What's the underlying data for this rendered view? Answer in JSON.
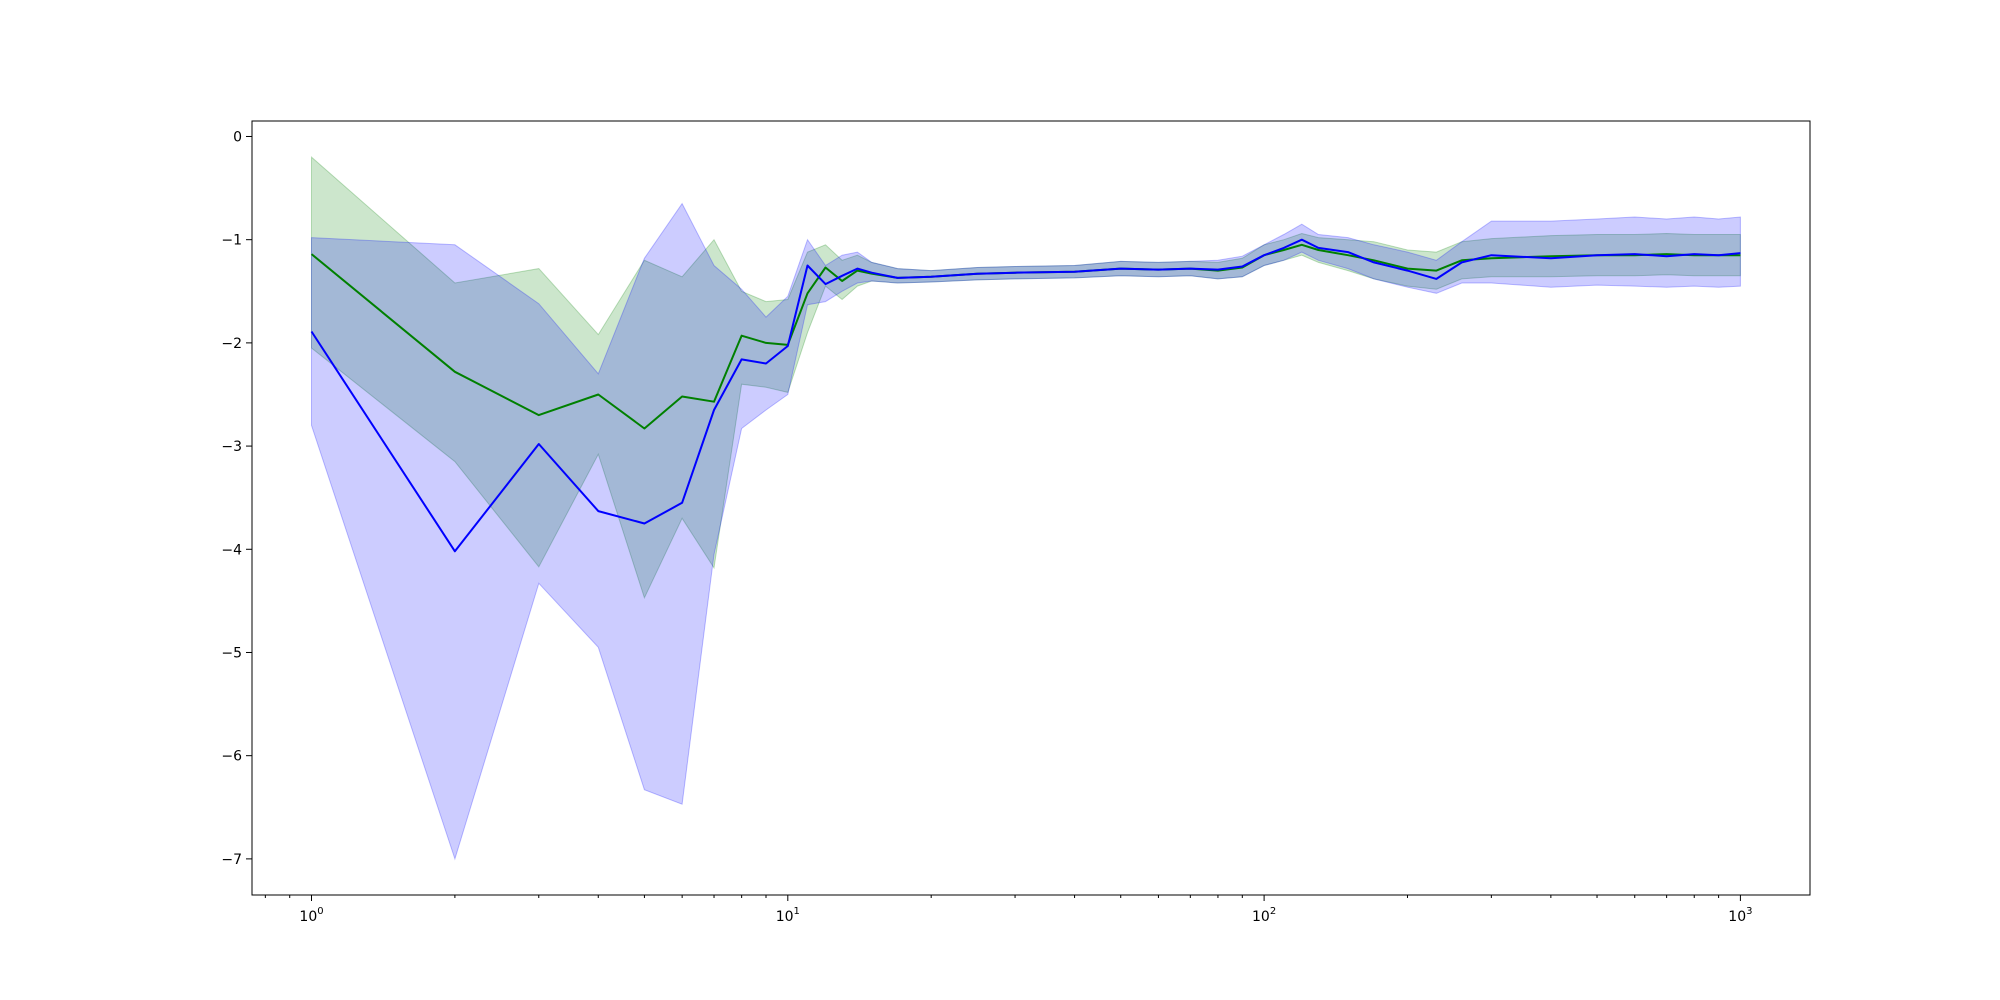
{
  "chart_data": {
    "type": "line",
    "title": "",
    "xlabel": "",
    "ylabel": "",
    "xscale": "log",
    "xlim": [
      0.75,
      1400
    ],
    "ylim": [
      -7.35,
      0.15
    ],
    "grid": false,
    "legend": "none",
    "x_ticks": [
      {
        "value": 1,
        "base": "10",
        "exp": "0"
      },
      {
        "value": 10,
        "base": "10",
        "exp": "1"
      },
      {
        "value": 100,
        "base": "10",
        "exp": "2"
      },
      {
        "value": 1000,
        "base": "10",
        "exp": "3"
      }
    ],
    "y_ticks": [
      {
        "value": 0,
        "label": "0"
      },
      {
        "value": -1,
        "label": "−1"
      },
      {
        "value": -2,
        "label": "−2"
      },
      {
        "value": -3,
        "label": "−3"
      },
      {
        "value": -4,
        "label": "−4"
      },
      {
        "value": -5,
        "label": "−5"
      },
      {
        "value": -6,
        "label": "−6"
      },
      {
        "value": -7,
        "label": "−7"
      }
    ],
    "series": [
      {
        "color": "#008000",
        "band_color": "#008000",
        "band_opacity": 0.2,
        "x": [
          1,
          2,
          3,
          4,
          5,
          6,
          7,
          8,
          9,
          10,
          11,
          12,
          13,
          14,
          15,
          17,
          20,
          25,
          30,
          40,
          50,
          60,
          70,
          80,
          90,
          100,
          110,
          120,
          130,
          150,
          170,
          200,
          230,
          260,
          300,
          400,
          500,
          600,
          700,
          800,
          900,
          1000
        ],
        "values": [
          -1.14,
          -2.28,
          -2.7,
          -2.5,
          -2.83,
          -2.52,
          -2.57,
          -1.93,
          -2.0,
          -2.02,
          -1.52,
          -1.27,
          -1.4,
          -1.3,
          -1.33,
          -1.37,
          -1.36,
          -1.33,
          -1.32,
          -1.31,
          -1.28,
          -1.29,
          -1.28,
          -1.3,
          -1.27,
          -1.15,
          -1.1,
          -1.05,
          -1.1,
          -1.15,
          -1.2,
          -1.28,
          -1.3,
          -1.2,
          -1.18,
          -1.16,
          -1.15,
          -1.15,
          -1.14,
          -1.15,
          -1.15,
          -1.15
        ],
        "lower": [
          -2.05,
          -3.15,
          -4.17,
          -3.08,
          -4.47,
          -3.7,
          -4.18,
          -2.4,
          -2.43,
          -2.48,
          -1.9,
          -1.45,
          -1.58,
          -1.45,
          -1.4,
          -1.42,
          -1.41,
          -1.39,
          -1.38,
          -1.37,
          -1.35,
          -1.36,
          -1.35,
          -1.38,
          -1.36,
          -1.25,
          -1.2,
          -1.15,
          -1.22,
          -1.3,
          -1.38,
          -1.45,
          -1.48,
          -1.38,
          -1.36,
          -1.36,
          -1.35,
          -1.35,
          -1.34,
          -1.35,
          -1.35,
          -1.35
        ],
        "upper": [
          -0.2,
          -1.42,
          -1.28,
          -1.92,
          -1.2,
          -1.36,
          -1.0,
          -1.5,
          -1.6,
          -1.58,
          -1.12,
          -1.05,
          -1.2,
          -1.15,
          -1.22,
          -1.28,
          -1.3,
          -1.27,
          -1.26,
          -1.25,
          -1.21,
          -1.22,
          -1.21,
          -1.22,
          -1.18,
          -1.05,
          -1.0,
          -0.94,
          -0.98,
          -1.0,
          -1.02,
          -1.1,
          -1.12,
          -1.02,
          -0.99,
          -0.96,
          -0.95,
          -0.95,
          -0.94,
          -0.95,
          -0.95,
          -0.95
        ]
      },
      {
        "color": "#0000ff",
        "band_color": "#0000ff",
        "band_opacity": 0.2,
        "x": [
          1,
          2,
          3,
          4,
          5,
          6,
          7,
          8,
          9,
          10,
          11,
          12,
          13,
          14,
          15,
          17,
          20,
          25,
          30,
          40,
          50,
          60,
          70,
          80,
          90,
          100,
          110,
          120,
          130,
          150,
          170,
          200,
          230,
          260,
          300,
          400,
          500,
          600,
          700,
          800,
          900,
          1000
        ],
        "values": [
          -1.89,
          -4.02,
          -2.98,
          -3.63,
          -3.75,
          -3.55,
          -2.65,
          -2.16,
          -2.2,
          -2.03,
          -1.25,
          -1.43,
          -1.35,
          -1.28,
          -1.32,
          -1.37,
          -1.36,
          -1.33,
          -1.32,
          -1.31,
          -1.28,
          -1.29,
          -1.28,
          -1.29,
          -1.26,
          -1.15,
          -1.08,
          -1.0,
          -1.08,
          -1.12,
          -1.22,
          -1.3,
          -1.38,
          -1.22,
          -1.15,
          -1.18,
          -1.15,
          -1.14,
          -1.16,
          -1.14,
          -1.15,
          -1.13
        ],
        "lower": [
          -2.8,
          -7.0,
          -4.33,
          -4.95,
          -6.33,
          -6.47,
          -4.05,
          -2.83,
          -2.65,
          -2.5,
          -1.63,
          -1.6,
          -1.5,
          -1.42,
          -1.4,
          -1.42,
          -1.41,
          -1.39,
          -1.38,
          -1.37,
          -1.35,
          -1.36,
          -1.35,
          -1.38,
          -1.36,
          -1.25,
          -1.2,
          -1.12,
          -1.2,
          -1.28,
          -1.38,
          -1.46,
          -1.52,
          -1.42,
          -1.42,
          -1.46,
          -1.44,
          -1.45,
          -1.46,
          -1.45,
          -1.46,
          -1.45
        ],
        "upper": [
          -0.98,
          -1.05,
          -1.62,
          -2.3,
          -1.18,
          -0.65,
          -1.25,
          -1.48,
          -1.75,
          -1.55,
          -1.0,
          -1.25,
          -1.15,
          -1.12,
          -1.22,
          -1.28,
          -1.3,
          -1.27,
          -1.26,
          -1.25,
          -1.21,
          -1.22,
          -1.21,
          -1.2,
          -1.16,
          -1.05,
          -0.95,
          -0.85,
          -0.95,
          -0.98,
          -1.05,
          -1.12,
          -1.2,
          -1.02,
          -0.82,
          -0.82,
          -0.8,
          -0.78,
          -0.8,
          -0.78,
          -0.8,
          -0.78
        ]
      }
    ]
  }
}
